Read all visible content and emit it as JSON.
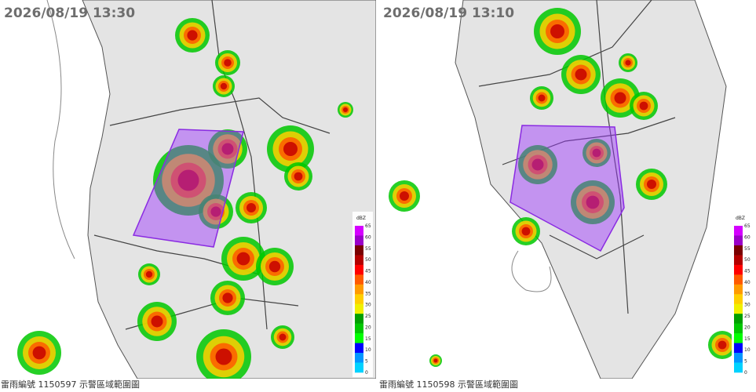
{
  "panels": [
    {
      "timestamp": "2026/08/19 13:30",
      "caption": "雷雨編號 1150597 示警區域範圍圖",
      "legend": {
        "unit": "dBZ",
        "labels": [
          "65",
          "60",
          "55",
          "50",
          "45",
          "40",
          "35",
          "30",
          "25",
          "20",
          "15",
          "10",
          "5",
          "0"
        ]
      }
    },
    {
      "timestamp": "2026/08/19 13:10",
      "caption": "雷雨編號 1150598 示警區域範圍圖",
      "legend": {
        "unit": "dBZ",
        "labels": [
          "65",
          "60",
          "55",
          "50",
          "45",
          "40",
          "35",
          "30",
          "25",
          "20",
          "15",
          "10",
          "5",
          "0"
        ]
      }
    }
  ]
}
